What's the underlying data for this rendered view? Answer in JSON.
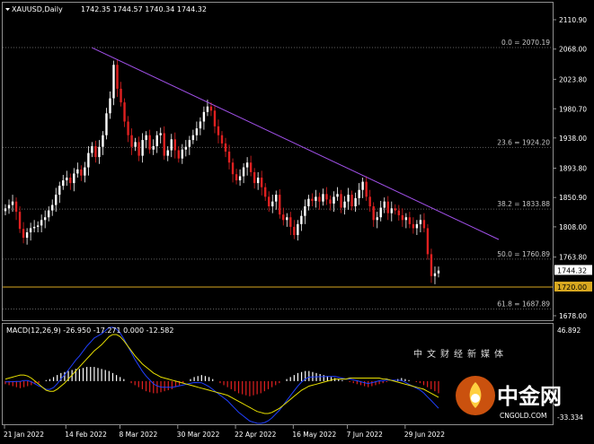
{
  "header": {
    "symbol": "XAUUSD,Daily",
    "ohlc": "1742.35 1744.57 1740.34 1744.32"
  },
  "macd_header": "MACD(12,26,9) -26.950 -17.271 0.000 -12.582",
  "colors": {
    "background": "#000000",
    "bull": "#ffffff",
    "bear": "#e02020",
    "trendline": "#a050e8",
    "level_line": "#d8a820",
    "signal_line": "#e8e000",
    "macd_line": "#2040ff",
    "grid": "#606060"
  },
  "chart_data": [
    {
      "type": "candlestick",
      "title": "XAUUSD,Daily",
      "y_ticks": [
        "2110.90",
        "2068.00",
        "2023.80",
        "1980.70",
        "1938.00",
        "1893.80",
        "1850.90",
        "1808.00",
        "1763.80",
        "1678.00"
      ],
      "x_ticks": [
        "21 Jan 2022",
        "14 Feb 2022",
        "8 Mar 2022",
        "30 Mar 2022",
        "22 Apr 2022",
        "16 May 2022",
        "7 Jun 2022",
        "29 Jun 2022"
      ],
      "ylim": [
        1678,
        2110.9
      ],
      "current_price": "1744.32",
      "level_price": "1720.00",
      "fib_levels": [
        {
          "label": "0.0 = 2070.19",
          "value": 2070.19
        },
        {
          "label": "23.6 = 1924.20",
          "value": 1924.2
        },
        {
          "label": "38.2 = 1833.88",
          "value": 1833.88
        },
        {
          "label": "50.0 = 1760.89",
          "value": 1760.89
        },
        {
          "label": "61.8 = 1687.89",
          "value": 1687.89
        }
      ],
      "trendline": [
        {
          "index": 24,
          "value": 2070
        },
        {
          "index": 113,
          "value": 1800
        }
      ],
      "closes": [
        1835,
        1840,
        1845,
        1830,
        1805,
        1792,
        1800,
        1806,
        1808,
        1810,
        1818,
        1822,
        1832,
        1840,
        1855,
        1868,
        1876,
        1880,
        1872,
        1886,
        1892,
        1883,
        1895,
        1916,
        1926,
        1910,
        1925,
        1942,
        1974,
        1996,
        2045,
        2010,
        1990,
        1962,
        1942,
        1925,
        1932,
        1912,
        1935,
        1942,
        1921,
        1926,
        1942,
        1945,
        1912,
        1920,
        1936,
        1920,
        1908,
        1921,
        1925,
        1935,
        1942,
        1952,
        1962,
        1976,
        1984,
        1978,
        1955,
        1942,
        1930,
        1918,
        1902,
        1885,
        1876,
        1882,
        1895,
        1902,
        1888,
        1872,
        1880,
        1866,
        1852,
        1838,
        1845,
        1855,
        1826,
        1818,
        1822,
        1808,
        1796,
        1812,
        1824,
        1838,
        1849,
        1846,
        1852,
        1845,
        1856,
        1848,
        1842,
        1852,
        1856,
        1836,
        1845,
        1855,
        1838,
        1850,
        1862,
        1874,
        1852,
        1838,
        1818,
        1822,
        1836,
        1845,
        1828,
        1835,
        1832,
        1825,
        1818,
        1822,
        1812,
        1806,
        1812,
        1818,
        1806,
        1768,
        1736,
        1740,
        1744
      ],
      "y_ticks_macd": [
        "46.892",
        "-33.334"
      ]
    },
    {
      "type": "bar",
      "title": "MACD(12,26,9)",
      "ylim": [
        -40,
        46.892
      ],
      "signal": [
        2,
        3,
        4,
        5,
        6,
        6,
        5,
        3,
        0,
        -3,
        -6,
        -9,
        -10,
        -10,
        -8,
        -5,
        -2,
        2,
        6,
        10,
        14,
        18,
        22,
        26,
        30,
        33,
        36,
        40,
        44,
        46,
        46,
        44,
        40,
        35,
        30,
        25,
        21,
        17,
        14,
        11,
        8,
        6,
        4,
        3,
        2,
        1,
        0,
        -1,
        -2,
        -3,
        -4,
        -5,
        -6,
        -7,
        -8,
        -9,
        -10,
        -11,
        -12,
        -13,
        -14,
        -16,
        -18,
        -20,
        -22,
        -24,
        -26,
        -28,
        -30,
        -31,
        -32,
        -32,
        -31,
        -29,
        -27,
        -24,
        -21,
        -18,
        -15,
        -12,
        -9,
        -7,
        -5,
        -4,
        -3,
        -2,
        -1,
        0,
        1,
        2,
        2,
        2,
        2,
        3,
        3,
        3,
        3,
        3,
        3,
        3,
        3,
        3,
        2,
        2,
        1,
        0,
        -1,
        -2,
        -3,
        -4,
        -5,
        -6,
        -7,
        -8,
        -10,
        -12,
        -14,
        -16
      ],
      "histogram": [
        -3,
        -4,
        -5,
        -6,
        -7,
        -6,
        -5,
        -4,
        -3,
        -2,
        0,
        1,
        2,
        4,
        6,
        8,
        9,
        10,
        11,
        12,
        12,
        13,
        14,
        14,
        14,
        13,
        12,
        11,
        10,
        8,
        6,
        4,
        2,
        0,
        -2,
        -4,
        -6,
        -8,
        -10,
        -11,
        -12,
        -12,
        -11,
        -10,
        -9,
        -8,
        -6,
        -4,
        -2,
        0,
        2,
        4,
        5,
        6,
        5,
        4,
        2,
        0,
        -2,
        -4,
        -6,
        -8,
        -10,
        -12,
        -13,
        -14,
        -15,
        -14,
        -13,
        -12,
        -10,
        -8,
        -6,
        -4,
        -2,
        0,
        2,
        4,
        6,
        8,
        9,
        10,
        10,
        9,
        8,
        7,
        6,
        5,
        4,
        3,
        2,
        1,
        0,
        -1,
        -2,
        -3,
        -4,
        -5,
        -6,
        -5,
        -4,
        -3,
        -2,
        -1,
        0,
        1,
        2,
        3,
        2,
        1,
        0,
        -1,
        -2,
        -4,
        -6,
        -8,
        -10,
        -12
      ]
    }
  ]
}
